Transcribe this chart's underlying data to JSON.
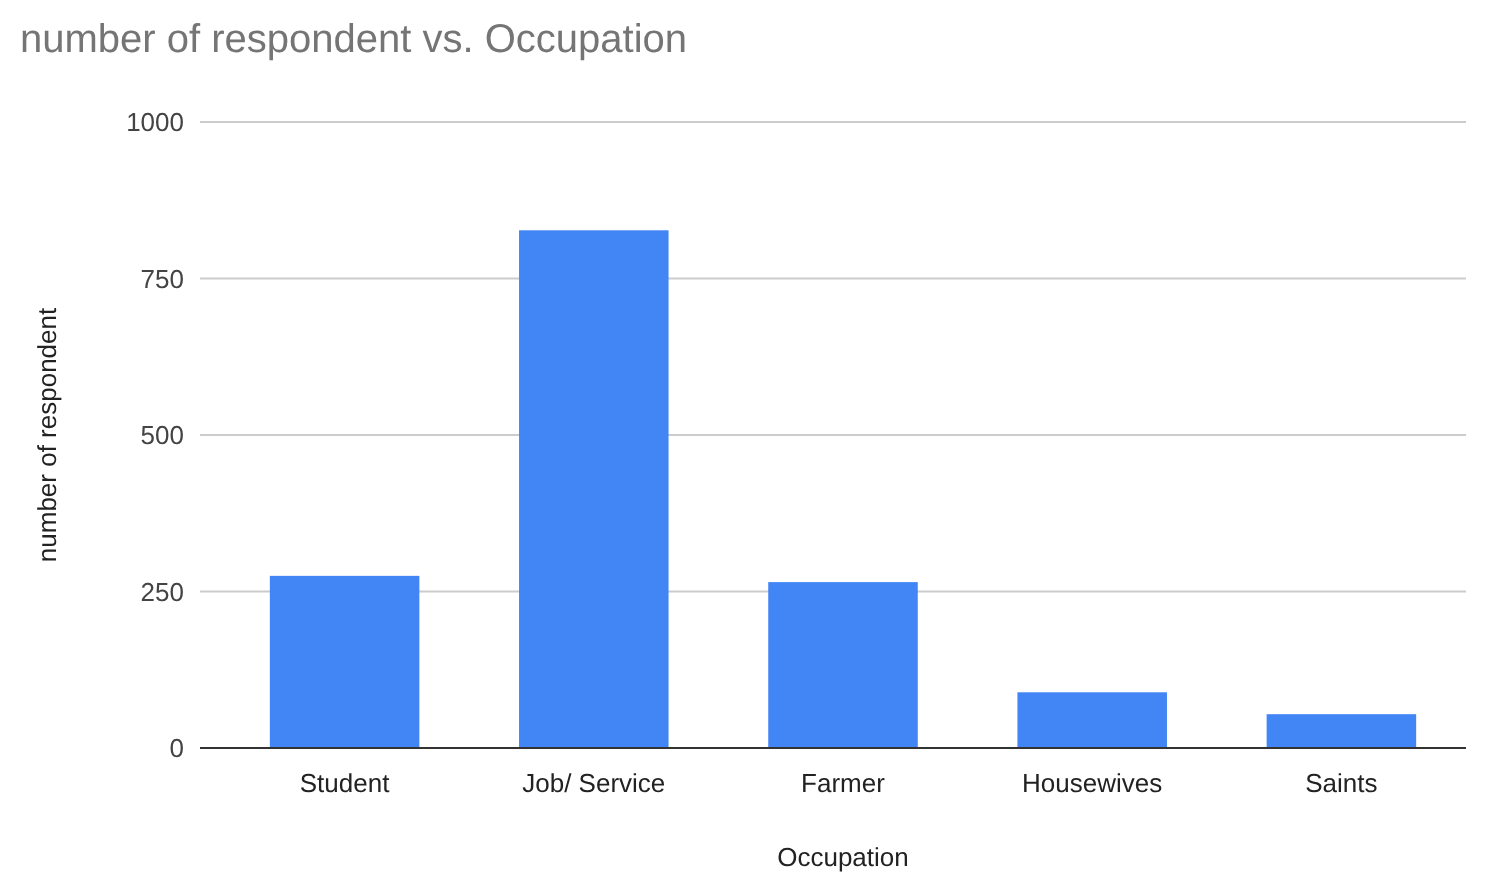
{
  "chart_data": {
    "type": "bar",
    "title": "number of respondent  vs. Occupation",
    "xlabel": "Occupation",
    "ylabel": "number of respondent",
    "categories": [
      "Student",
      "Job/ Service",
      "Farmer",
      "Housewives",
      "Saints"
    ],
    "values": [
      275,
      827,
      265,
      89,
      54
    ],
    "color": "#4285f4",
    "ylim": [
      0,
      1000
    ],
    "yticks": [
      0,
      250,
      500,
      750,
      1000
    ],
    "grid": "y"
  }
}
